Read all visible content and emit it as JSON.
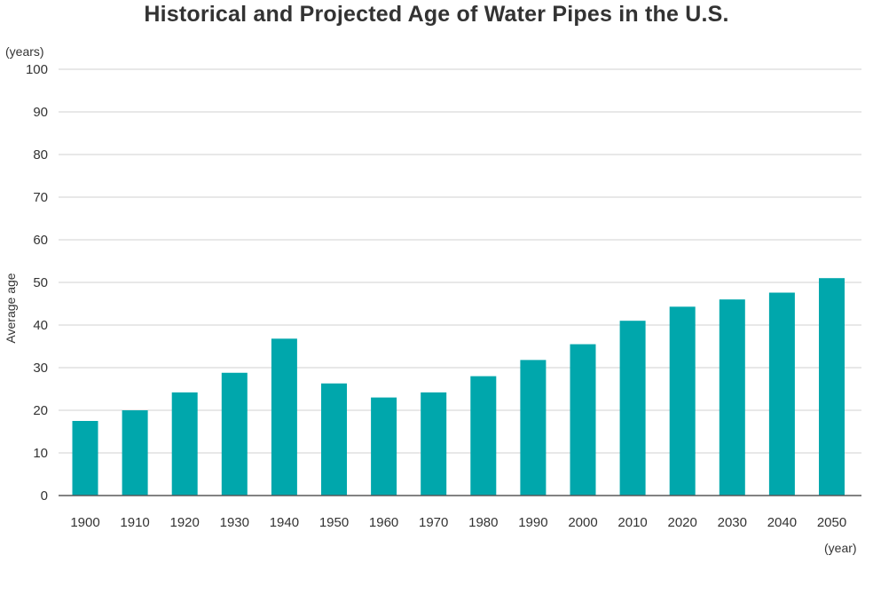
{
  "chart_data": {
    "type": "bar",
    "title": "Historical and Projected Age of Water Pipes in the U.S.",
    "ylabel": "Average age",
    "y_unit": "(years)",
    "xlabel": "",
    "x_unit": "(year)",
    "ylim": [
      0,
      100
    ],
    "yticks": [
      0,
      10,
      20,
      30,
      40,
      50,
      60,
      70,
      80,
      90,
      100
    ],
    "grid": true,
    "categories": [
      "1900",
      "1910",
      "1920",
      "1930",
      "1940",
      "1950",
      "1960",
      "1970",
      "1980",
      "1990",
      "2000",
      "2010",
      "2020",
      "2030",
      "2040",
      "2050"
    ],
    "values": [
      17.5,
      20,
      24.2,
      28.8,
      36.8,
      26.3,
      23,
      24.2,
      28,
      31.8,
      35.5,
      41,
      44.3,
      46,
      47.6,
      51
    ],
    "bar_color": "#00A7AC",
    "grid_color": "#D9D9D9",
    "axis_color": "#595959"
  }
}
